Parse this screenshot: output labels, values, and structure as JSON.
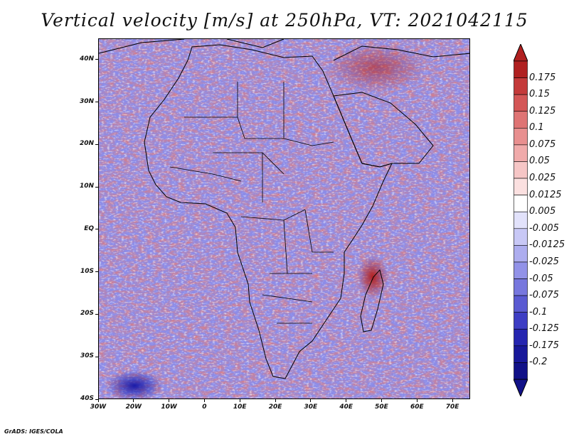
{
  "title": "Vertical velocity [m/s] at 250hPa, VT: 2021042115",
  "credit": "GrADS: IGES/COLA",
  "map": {
    "lat_range": [
      -40,
      45
    ],
    "lon_range": [
      -30,
      75
    ],
    "lat_ticks": [
      {
        "value": 40,
        "label": "40N"
      },
      {
        "value": 30,
        "label": "30N"
      },
      {
        "value": 20,
        "label": "20N"
      },
      {
        "value": 10,
        "label": "10N"
      },
      {
        "value": 0,
        "label": "EQ"
      },
      {
        "value": -10,
        "label": "10S"
      },
      {
        "value": -20,
        "label": "20S"
      },
      {
        "value": -30,
        "label": "30S"
      },
      {
        "value": -40,
        "label": "40S"
      }
    ],
    "lon_ticks": [
      {
        "value": -30,
        "label": "30W"
      },
      {
        "value": -20,
        "label": "20W"
      },
      {
        "value": -10,
        "label": "10W"
      },
      {
        "value": 0,
        "label": "0"
      },
      {
        "value": 10,
        "label": "10E"
      },
      {
        "value": 20,
        "label": "20E"
      },
      {
        "value": 30,
        "label": "30E"
      },
      {
        "value": 40,
        "label": "40E"
      },
      {
        "value": 50,
        "label": "50E"
      },
      {
        "value": 60,
        "label": "60E"
      },
      {
        "value": 70,
        "label": "70E"
      }
    ]
  },
  "colorbar": {
    "labels": [
      "0.175",
      "0.15",
      "0.125",
      "0.1",
      "0.075",
      "0.05",
      "0.025",
      "0.0125",
      "0.005",
      "-0.005",
      "-0.0125",
      "-0.025",
      "-0.05",
      "-0.075",
      "-0.1",
      "-0.125",
      "-0.175",
      "-0.2"
    ],
    "colors": [
      "#b02020",
      "#c43a3a",
      "#d45656",
      "#df7474",
      "#e88f8f",
      "#f0aaaa",
      "#f6c6c6",
      "#fbe0e0",
      "#ffffff",
      "#e2e2fb",
      "#c8c8f6",
      "#adadef",
      "#9292e8",
      "#7777de",
      "#5a5ad2",
      "#3d3dc4",
      "#2525b0",
      "#18189a",
      "#111188"
    ],
    "arrow_top_color": "#b02020",
    "arrow_bottom_color": "#111188"
  },
  "colors": {
    "positive": "#e07b7b",
    "negative": "#7f7fe6",
    "coast": "#000000"
  }
}
